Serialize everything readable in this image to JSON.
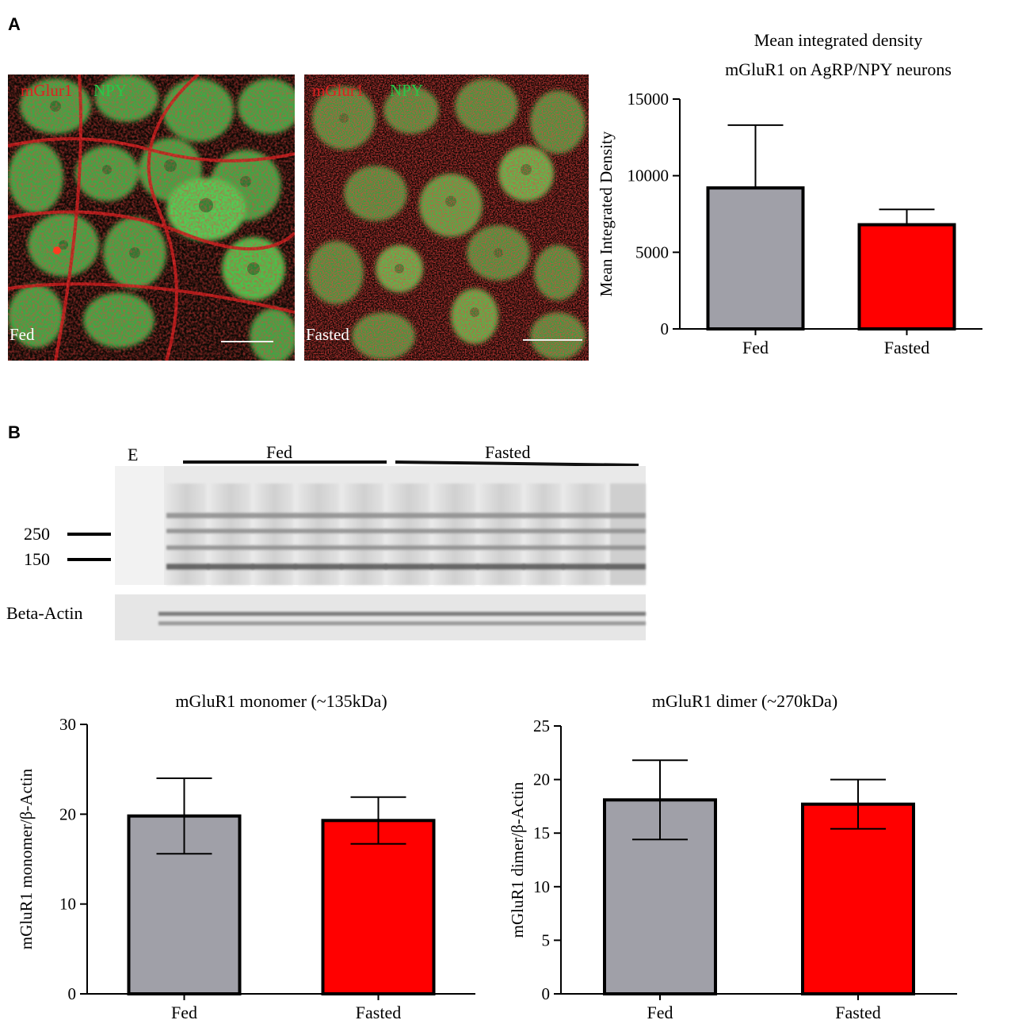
{
  "panels": {
    "a_label": "A",
    "b_label": "B"
  },
  "micrographs": [
    {
      "marker_red": "mGlur1",
      "marker_green": "NPY",
      "condition": "Fed"
    },
    {
      "marker_red": "mGlur1",
      "marker_green": "NPY",
      "condition": "Fasted"
    }
  ],
  "blot": {
    "empty_lane": "E",
    "group_fed": "Fed",
    "group_fasted": "Fasted",
    "mw_markers": [
      "250",
      "150"
    ],
    "loading_control": "Beta-Actin"
  },
  "colors": {
    "fed": "#a0a0a8",
    "fasted": "#ff0000",
    "micrograph_red": "#d01818",
    "micrograph_green": "#3cc850"
  },
  "chart_data": [
    {
      "type": "bar",
      "title": "Mean integrated  density",
      "subtitle": "mGluR1  on AgRP/NPY neurons",
      "ylabel": "Mean Integrated  Density",
      "xlabel": "",
      "categories": [
        "Fed",
        "Fasted"
      ],
      "values": [
        9200,
        6800
      ],
      "errors": [
        4100,
        1000
      ],
      "error_style": "upper",
      "ylim": [
        0,
        15000
      ],
      "yticks": [
        0,
        5000,
        10000,
        15000
      ],
      "grid": false
    },
    {
      "type": "bar",
      "title": "mGluR1  monomer  (~135kDa)",
      "ylabel": "mGluR1  monomer/β-Actin",
      "xlabel": "",
      "categories": [
        "Fed",
        "Fasted"
      ],
      "values": [
        19.8,
        19.3
      ],
      "errors": [
        4.2,
        2.6
      ],
      "error_style": "both",
      "ylim": [
        0,
        30
      ],
      "yticks": [
        0,
        10,
        20,
        30
      ],
      "grid": false
    },
    {
      "type": "bar",
      "title": "mGluR1  dimer  (~270kDa)",
      "ylabel": "mGluR1  dimer/β-Actin",
      "xlabel": "",
      "categories": [
        "Fed",
        "Fasted"
      ],
      "values": [
        18.1,
        17.7
      ],
      "errors": [
        3.7,
        2.3
      ],
      "error_style": "both",
      "ylim": [
        0,
        25
      ],
      "yticks": [
        0,
        5,
        10,
        15,
        20,
        25
      ],
      "grid": false
    }
  ]
}
